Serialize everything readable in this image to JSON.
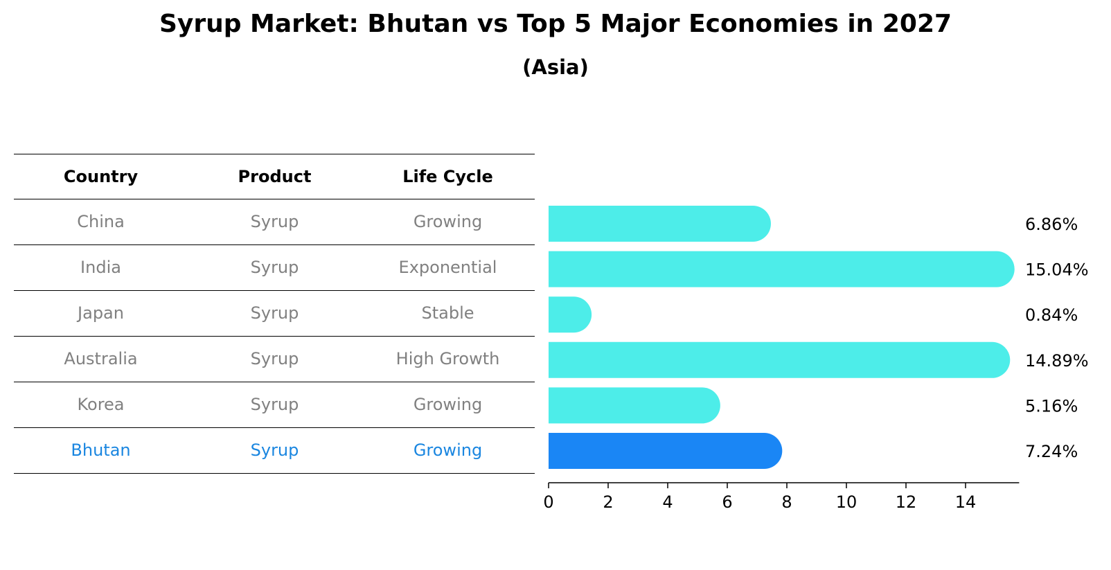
{
  "title": "Syrup Market: Bhutan vs Top 5 Major Economies in 2027",
  "subtitle": "(Asia)",
  "table": {
    "headers": [
      "Country",
      "Product",
      "Life Cycle"
    ],
    "rows": [
      [
        "China",
        "Syrup",
        "Growing"
      ],
      [
        "India",
        "Syrup",
        "Exponential"
      ],
      [
        "Japan",
        "Syrup",
        "Stable"
      ],
      [
        "Australia",
        "Syrup",
        "High Growth"
      ],
      [
        "Korea",
        "Syrup",
        "Growing"
      ],
      [
        "Bhutan",
        "Syrup",
        "Growing"
      ]
    ]
  },
  "colors": {
    "bar": "#4dede9",
    "highlight": "#1a86f5",
    "highlight_text": "#1a86e0",
    "muted_text": "#808080"
  },
  "chart_data": {
    "type": "bar",
    "orientation": "horizontal",
    "categories": [
      "China",
      "India",
      "Japan",
      "Australia",
      "Korea",
      "Bhutan"
    ],
    "values": [
      6.86,
      15.04,
      0.84,
      14.89,
      5.16,
      7.24
    ],
    "value_labels": [
      "6.86%",
      "15.04%",
      "0.84%",
      "14.89%",
      "5.16%",
      "7.24%"
    ],
    "highlight": "Bhutan",
    "xlim": [
      0,
      15.8
    ],
    "xticks": [
      0,
      2,
      4,
      6,
      8,
      10,
      12,
      14
    ],
    "xlabel": "",
    "ylabel": ""
  }
}
